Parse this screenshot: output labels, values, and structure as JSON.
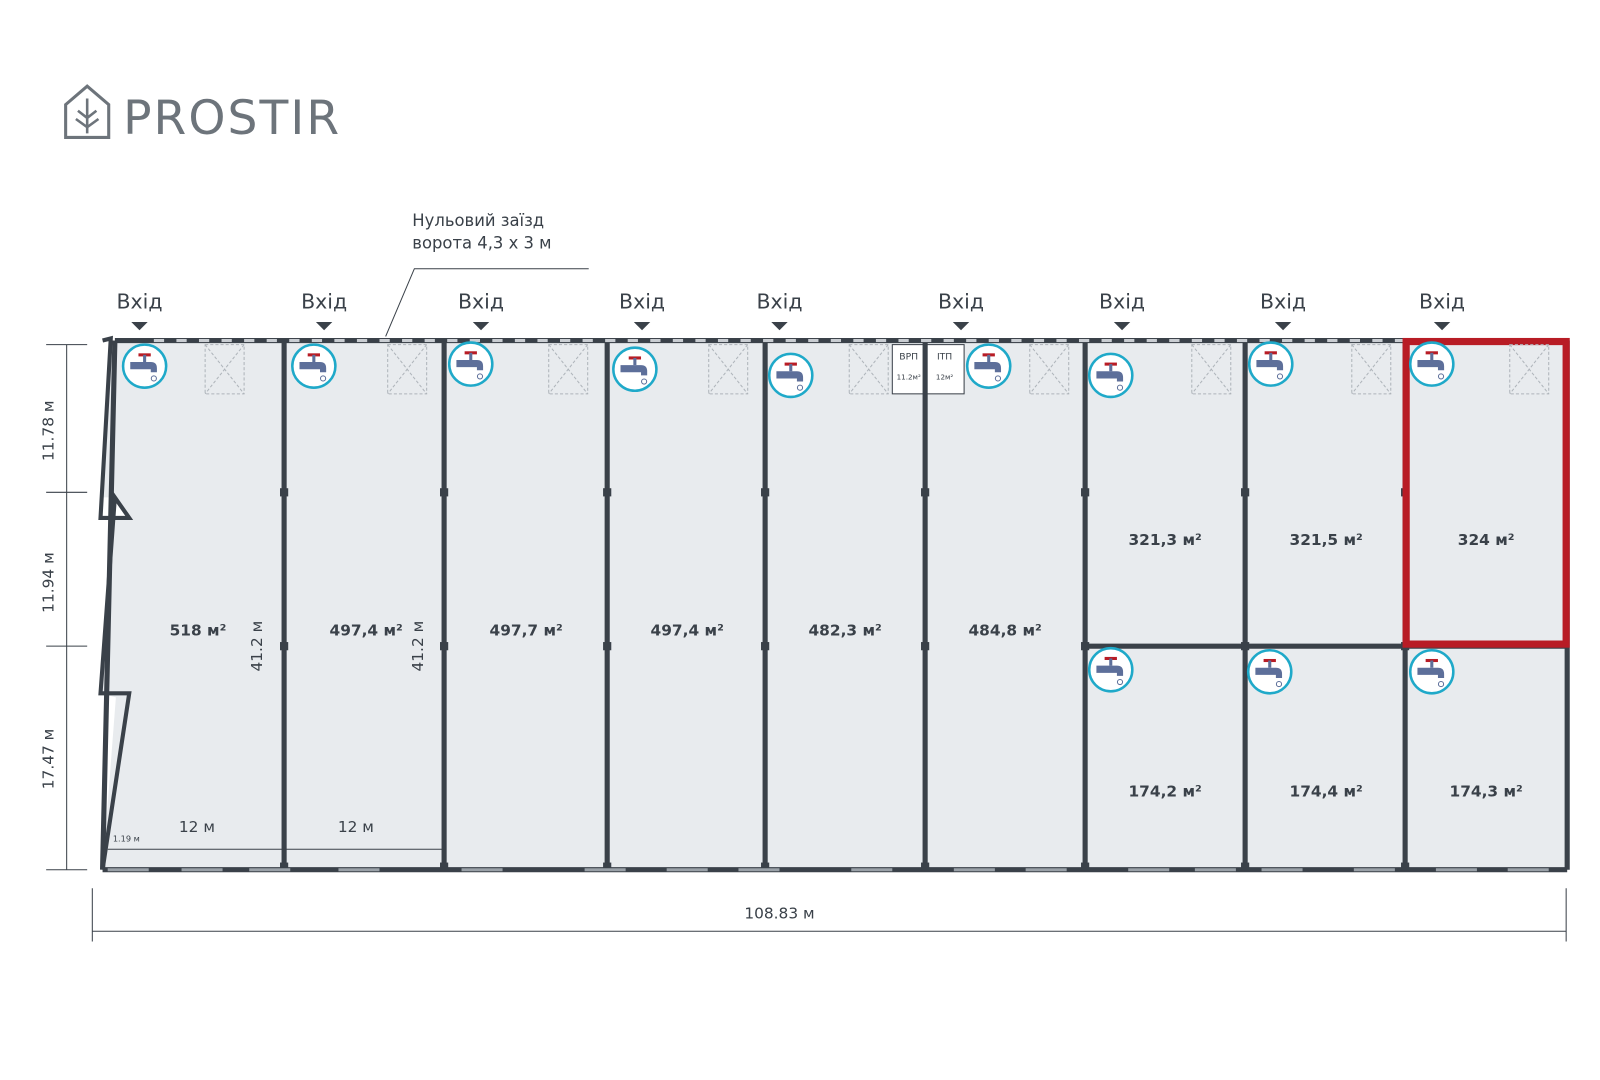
{
  "logo": "PROSTIR",
  "annotation": {
    "line1": "Нульовий заїзд",
    "line2": "ворота 4,3 х 3 м"
  },
  "entrances": [
    "Вхід",
    "Вхід",
    "Вхід",
    "Вхід",
    "Вхід",
    "Вхід",
    "Вхід",
    "Вхід",
    "Вхід"
  ],
  "units": [
    {
      "area": "518 м²"
    },
    {
      "area": "497,4 м²"
    },
    {
      "area": "497,7 м²"
    },
    {
      "area": "497,4 м²"
    },
    {
      "area": "482,3 м²"
    },
    {
      "area": "484,8 м²"
    },
    {
      "area": "321,3 м²"
    },
    {
      "area": "321,5 м²"
    },
    {
      "area": "324 м²"
    },
    {
      "area": "174,2 м²"
    },
    {
      "area": "174,4 м²"
    },
    {
      "area": "174,3 м²"
    }
  ],
  "technical_rooms": [
    {
      "name": "ВРП",
      "area": "11.2м²"
    },
    {
      "name": "ІТП",
      "area": "12м²"
    }
  ],
  "dimensions": {
    "left_segments": [
      "11.78 м",
      "11.94 м",
      "17.47 м"
    ],
    "heights": [
      "41.2 м",
      "41.2 м"
    ],
    "widths": [
      "12 м",
      "12 м"
    ],
    "small": "1.19 м",
    "total": "108.83 м"
  }
}
